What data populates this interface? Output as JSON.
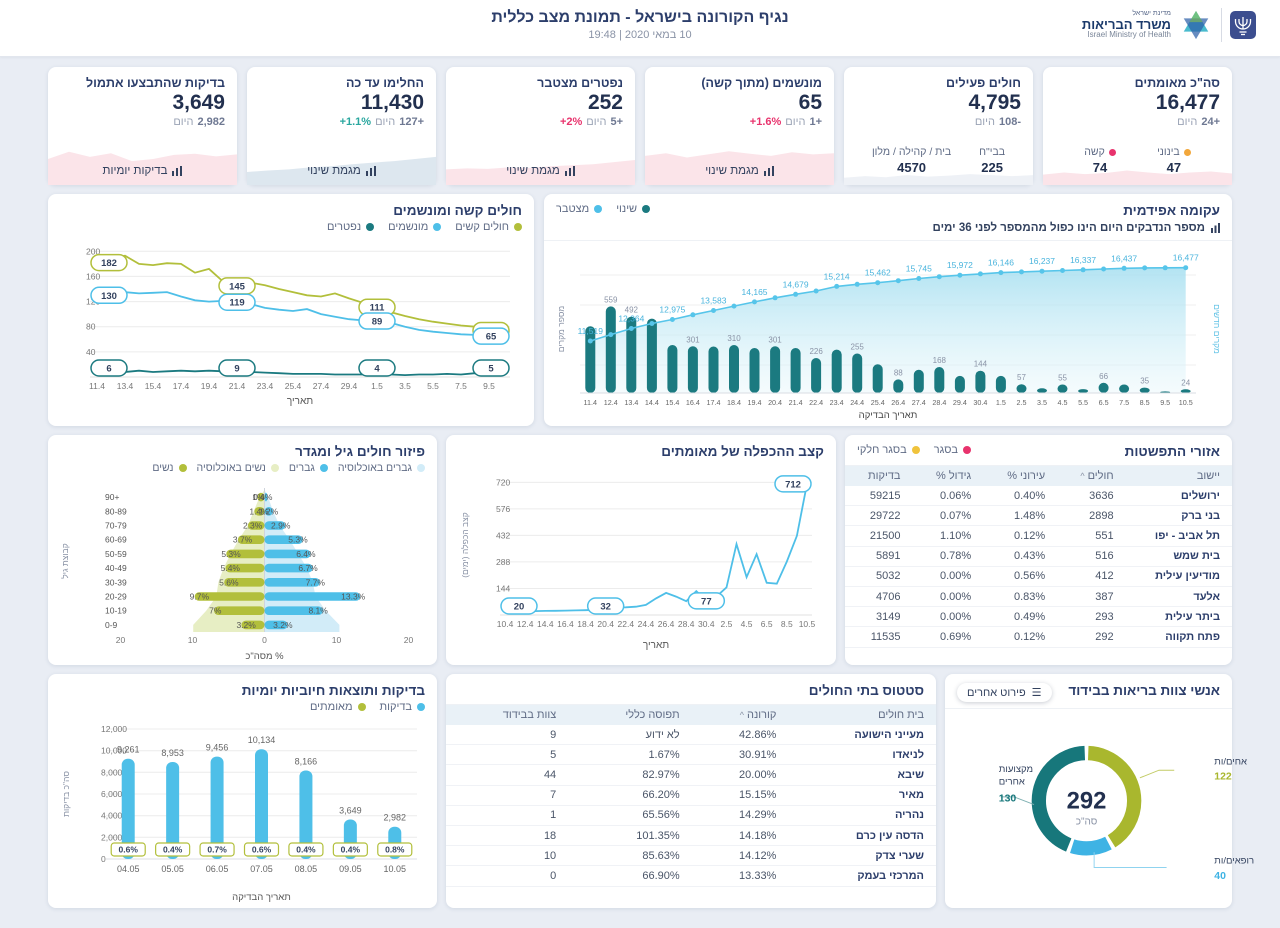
{
  "header": {
    "title": "נגיף הקורונה בישראל - תמונת מצב כללית",
    "datetime": "10 במאי 2020 | 19:48",
    "logo": {
      "state": "מדינת ישראל",
      "ministry": "משרד הבריאות",
      "ministry_en": "Israel Ministry of Health",
      "emblem_icon": "state-emblem-menorah-icon",
      "star_icon": "moh-star-icon"
    }
  },
  "kpis": [
    {
      "id": "confirmed-total",
      "title": "סה\"כ מאומתים",
      "value": "16,477",
      "delta_amount": "24+",
      "delta_word": "היום",
      "stats": [
        {
          "label": "בינוני",
          "value": "47",
          "dot": "#f2a73b"
        },
        {
          "label": "קשה",
          "value": "74",
          "dot": "#e8336d"
        }
      ],
      "spark": {
        "color": "#fbe4e9",
        "values": [
          2.0,
          2.4,
          2.1,
          2.3,
          2.8,
          2.4,
          2.1,
          2.4,
          2.6,
          2.2
        ]
      }
    },
    {
      "id": "active-patients",
      "title": "חולים פעילים",
      "value": "4,795",
      "delta_amount": "108-",
      "delta_word": "היום",
      "stats": [
        {
          "label": "בבי\"ח",
          "value": "225"
        },
        {
          "label": "בית / קהילה / מלון",
          "value": "4570"
        }
      ],
      "spark": {
        "color": "#eef1f6",
        "values": [
          1.4,
          1.7,
          1.5,
          1.9,
          1.6,
          1.8,
          2.1,
          1.9,
          1.7,
          1.9
        ]
      }
    },
    {
      "id": "ventilated",
      "title": "מונשמים (מתוך קשה)",
      "value": "65",
      "delta_amount": "1+",
      "delta_word": "היום",
      "delta_pct": "+1.6%",
      "delta_pct_color": "#e8336d",
      "link": {
        "label": "מגמת שינוי",
        "icon": "bar-chart-icon"
      },
      "spark": {
        "color": "#fbe4e9",
        "values": [
          5.6,
          6.1,
          5.3,
          5.9,
          6.5,
          6.0,
          5.6,
          6.3,
          5.9,
          6.1
        ]
      }
    },
    {
      "id": "deaths-cumulative",
      "title": "נפטרים מצטבר",
      "value": "252",
      "delta_amount": "5+",
      "delta_word": "היום",
      "delta_pct": "+2%",
      "delta_pct_color": "#e8336d",
      "link": {
        "label": "מגמת שינוי",
        "icon": "bar-chart-icon"
      },
      "spark": {
        "color": "#fbe4e9",
        "values": [
          3.0,
          3.2,
          3.1,
          3.4,
          3.3,
          3.6,
          3.8,
          4.0,
          4.4,
          4.8
        ]
      }
    },
    {
      "id": "recovered",
      "title": "החלימו עד כה",
      "value": "11,430",
      "delta_amount": "127+",
      "delta_word": "היום",
      "delta_pct": "+1.1%",
      "delta_pct_color": "#2aa79f",
      "link": {
        "label": "מגמת שינוי",
        "icon": "bar-chart-icon"
      },
      "spark": {
        "color": "#dde7ef",
        "values": [
          2.5,
          2.8,
          3.0,
          3.4,
          3.6,
          4.0,
          4.3,
          4.6,
          5.0,
          5.4
        ]
      }
    },
    {
      "id": "tests-yesterday",
      "title": "בדיקות שהתבצעו אתמול",
      "value": "3,649",
      "delta_amount": "2,982",
      "delta_word": "היום",
      "link": {
        "label": "בדיקות יומיות",
        "icon": "bar-chart-icon"
      },
      "spark": {
        "color": "#fbe4e9",
        "values": [
          5.0,
          6.4,
          5.4,
          6.1,
          4.6,
          5.0,
          5.8,
          6.0,
          5.5,
          5.9
        ]
      }
    }
  ],
  "chart_data": [
    {
      "id": "epidemic-curve",
      "type": "bar+line",
      "render": "combo",
      "title": "עקומה אפידמית",
      "note": "מספר הנדבקים היום הינו כפול מהמספר לפני 36 ימים",
      "legend": [
        {
          "label": "שינוי",
          "color": "#1b7a80"
        },
        {
          "label": "מצטבר",
          "color": "#4ebfe8"
        }
      ],
      "xlabel": "תאריך הבדיקה",
      "ylabel_left": "מספר מקרים",
      "ylabel_right": "מקרים חדשים",
      "categories": [
        "11.4",
        "12.4",
        "13.4",
        "14.4",
        "15.4",
        "16.4",
        "17.4",
        "18.4",
        "19.4",
        "20.4",
        "21.4",
        "22.4",
        "23.4",
        "24.4",
        "25.4",
        "26.4",
        "27.4",
        "28.4",
        "29.4",
        "30.4",
        "1.5",
        "2.5",
        "3.5",
        "4.5",
        "5.5",
        "6.5",
        "7.5",
        "8.5",
        "9.5",
        "10.5"
      ],
      "bars": {
        "name": "שינוי",
        "color": "#1b7a80",
        "values": [
          430,
          559,
          492,
          480,
          310,
          301,
          300,
          310,
          290,
          301,
          290,
          226,
          280,
          255,
          185,
          88,
          150,
          168,
          110,
          144,
          110,
          57,
          30,
          55,
          25,
          66,
          55,
          35,
          10,
          24
        ],
        "labels": [
          "",
          "559",
          "492",
          "",
          "",
          "301",
          "",
          "310",
          "",
          "301",
          "",
          "226",
          "",
          "255",
          "",
          "88",
          "",
          "168",
          "",
          "144",
          "",
          "57",
          "",
          "55",
          "",
          "66",
          "",
          "35",
          "",
          "24"
        ]
      },
      "line": {
        "name": "מצטבר",
        "color": "#56c5ea",
        "values": [
          11519,
          11950,
          12364,
          12700,
          12975,
          13290,
          13583,
          13880,
          14165,
          14440,
          14679,
          14900,
          15214,
          15350,
          15462,
          15600,
          15745,
          15870,
          15972,
          16060,
          16146,
          16190,
          16237,
          16290,
          16337,
          16390,
          16437,
          16460,
          16470,
          16477
        ],
        "labels": [
          "11,519",
          "",
          "12,364",
          "",
          "12,975",
          "",
          "13,583",
          "",
          "14,165",
          "",
          "14,679",
          "",
          "15,214",
          "",
          "15,462",
          "",
          "15,745",
          "",
          "15,972",
          "",
          "16,146",
          "",
          "16,237",
          "",
          "16,337",
          "",
          "16,437",
          "",
          "",
          "16,477"
        ]
      }
    },
    {
      "id": "severe-ventilated",
      "type": "line",
      "render": "lines",
      "title": "חולים קשה ומונשמים",
      "legend": [
        {
          "label": "חולים קשים",
          "color": "#b2bf3b"
        },
        {
          "label": "מונשמים",
          "color": "#4ebfe8"
        },
        {
          "label": "נפטרים",
          "color": "#1b7a80"
        }
      ],
      "xlabel": "תאריך",
      "ymax": 210,
      "yticks": [
        200,
        160,
        120,
        80,
        40
      ],
      "categories": [
        "11.4",
        "12.4",
        "13.4",
        "14.4",
        "15.4",
        "16.4",
        "17.4",
        "18.4",
        "19.4",
        "20.4",
        "21.4",
        "22.4",
        "23.4",
        "24.4",
        "25.4",
        "26.4",
        "27.4",
        "28.4",
        "29.4",
        "30.4",
        "1.5",
        "2.5",
        "3.5",
        "4.5",
        "5.5",
        "6.5",
        "7.5",
        "8.5",
        "9.5",
        "10.5"
      ],
      "series": [
        {
          "name": "חולים קשים",
          "color": "#b2bf3b",
          "values": [
            182,
            188,
            193,
            180,
            178,
            181,
            180,
            166,
            172,
            152,
            145,
            150,
            146,
            140,
            135,
            130,
            128,
            133,
            125,
            118,
            111,
            103,
            97,
            92,
            88,
            85,
            82,
            80,
            78,
            74
          ],
          "callouts": {
            "0": "182",
            "10": "145",
            "20": "111",
            "29": "74"
          }
        },
        {
          "name": "מונשמים",
          "color": "#4ebfe8",
          "values": [
            130,
            132,
            135,
            133,
            134,
            135,
            128,
            122,
            120,
            121,
            119,
            116,
            110,
            107,
            105,
            108,
            100,
            96,
            92,
            90,
            89,
            86,
            80,
            75,
            72,
            70,
            68,
            67,
            66,
            65
          ],
          "callouts": {
            "0": "130",
            "10": "119",
            "20": "89",
            "29": "65"
          }
        },
        {
          "name": "נפטרים",
          "color": "#1b7a80",
          "values": [
            6,
            7,
            8,
            10,
            8,
            9,
            10,
            9,
            10,
            9,
            9,
            8,
            7,
            6,
            5,
            5,
            5,
            4,
            4,
            4,
            4,
            4,
            3,
            4,
            4,
            5,
            4,
            6,
            5,
            5
          ],
          "callouts": {
            "0": "6",
            "10": "9",
            "20": "4",
            "29": "5"
          }
        }
      ]
    },
    {
      "id": "age-gender",
      "type": "pyramid",
      "render": "pyramid",
      "title": "פיזור חולים גיל ומגדר",
      "legend": [
        {
          "label": "גברים באוכלוסיה",
          "color": "#d2ecf8"
        },
        {
          "label": "גברים",
          "color": "#4ebfe8"
        },
        {
          "label": "נשים באוכלוסיה",
          "color": "#e7eec4"
        },
        {
          "label": "נשים",
          "color": "#b2bf3b"
        }
      ],
      "xlabel": "% מסה\"כ",
      "ylabel": "קבוצת גיל",
      "xticks": [
        20,
        10,
        0,
        10,
        20
      ],
      "groups": [
        "+90",
        "80-89",
        "70-79",
        "60-69",
        "50-59",
        "40-49",
        "30-39",
        "20-29",
        "10-19",
        "0-9"
      ],
      "women": [
        1,
        1.4,
        2.3,
        3.7,
        5.3,
        5.4,
        5.6,
        9.7,
        7,
        3.2
      ],
      "women_labels": [
        "1%",
        "1.4%",
        "2.3%",
        "3.7%",
        "5.3%",
        "5.4%",
        "5.6%",
        "9.7%",
        "7%",
        "3.2%"
      ],
      "men": [
        0.4,
        1.2,
        2.9,
        5.3,
        6.4,
        6.7,
        7.7,
        13.3,
        8.1,
        3.2
      ],
      "men_labels": [
        "0.4%",
        "1.2%",
        "2.9%",
        "5.3%",
        "6.4%",
        "6.7%",
        "7.7%",
        "13.3%",
        "8.1%",
        "3.2%"
      ],
      "women_pop": [
        0.7,
        1.5,
        2.3,
        3.6,
        4.7,
        5.7,
        6.4,
        6.7,
        8.1,
        9.9
      ],
      "men_pop": [
        0.5,
        1.2,
        2.1,
        3.5,
        4.7,
        5.9,
        6.7,
        7.1,
        8.5,
        10.4
      ],
      "colors": {
        "women": "#b2bf3b",
        "men": "#4ebfe8"
      },
      "pop_colors": {
        "women": "#e7eec4",
        "men": "#d2ecf8"
      }
    },
    {
      "id": "doubling-rate",
      "type": "line",
      "render": "lines",
      "title": "קצב ההכפלה של מאומתים",
      "xlabel": "תאריך",
      "ylabel": "קצב הכפלה (ימים)",
      "ymax": 760,
      "yticks": [
        720,
        576,
        432,
        288,
        144
      ],
      "categories": [
        "10.4",
        "11.4",
        "12.4",
        "13.4",
        "14.4",
        "15.4",
        "16.4",
        "17.4",
        "18.4",
        "19.4",
        "20.4",
        "21.4",
        "22.4",
        "23.4",
        "24.4",
        "25.4",
        "26.4",
        "27.4",
        "28.4",
        "29.4",
        "30.4",
        "1.5",
        "2.5",
        "3.5",
        "4.5",
        "5.5",
        "6.5",
        "7.5",
        "8.5",
        "9.5",
        "10.5"
      ],
      "series": [
        {
          "name": "קצב הכפלה",
          "color": "#4ebfe8",
          "values": [
            20,
            19,
            20,
            21,
            22,
            23,
            24,
            25,
            26,
            28,
            32,
            40,
            42,
            45,
            55,
            90,
            120,
            100,
            75,
            130,
            77,
            100,
            150,
            385,
            205,
            330,
            175,
            170,
            290,
            430,
            712
          ],
          "callouts": {
            "0": "20",
            "10": "32",
            "20": "77",
            "30": "712"
          }
        }
      ]
    },
    {
      "id": "daily-tests",
      "type": "bar",
      "render": "bars",
      "title": "בדיקות ותוצאות חיוביות יומיות",
      "legend": [
        {
          "label": "בדיקות",
          "color": "#4ebfe8"
        },
        {
          "label": "מאומתים",
          "color": "#b2bf3b"
        }
      ],
      "xlabel": "תאריך הבדיקה",
      "ylabel": "סה\"כ בדיקות",
      "yticks": [
        12000,
        10000,
        8000,
        6000,
        4000,
        2000,
        0
      ],
      "ytick_labels": [
        "12,000",
        "10,000",
        "8,000",
        "6,000",
        "4,000",
        "2,000",
        "0"
      ],
      "categories": [
        "04.05",
        "05.05",
        "06.05",
        "07.05",
        "08.05",
        "09.05",
        "10.05"
      ],
      "values": [
        9261,
        8953,
        9456,
        10134,
        8166,
        3649,
        2982
      ],
      "labels": [
        "9,261",
        "8,953",
        "9,456",
        "10,134",
        "8,166",
        "3,649",
        "2,982"
      ],
      "positive_pct": [
        "0.6%",
        "0.4%",
        "0.7%",
        "0.6%",
        "0.4%",
        "0.4%",
        "0.8%"
      ],
      "bar_color": "#4ebfe8",
      "pct_border": "#b2bf3b"
    },
    {
      "id": "staff-isolation",
      "type": "pie",
      "render": "donut",
      "title": "אנשי צוות בריאות בבידוד",
      "button": "פירוט אחרים",
      "total": "292",
      "total_label": "סה\"כ",
      "segments": [
        {
          "label": "אחים/ות",
          "value": 122,
          "color": "#a9b72e"
        },
        {
          "label": "רופאים/ות",
          "value": 40,
          "color": "#3eb3e4"
        },
        {
          "label": "מקצועות אחרים",
          "value": 130,
          "color": "#17777b"
        }
      ]
    }
  ],
  "tables": {
    "spread": {
      "title": "אזורי התפשטות",
      "legend": [
        {
          "label": "בסגר",
          "color": "#e8336d"
        },
        {
          "label": "בסגר חלקי",
          "color": "#f0c33c"
        }
      ],
      "columns": [
        {
          "label": "יישוב"
        },
        {
          "label": "חולים",
          "sort": "^"
        },
        {
          "label": "עירוני %"
        },
        {
          "label": "גידול %"
        },
        {
          "label": "בדיקות"
        }
      ],
      "rows": [
        [
          "ירושלים",
          "3636",
          "0.40%",
          "0.06%",
          "59215"
        ],
        [
          "בני ברק",
          "2898",
          "1.48%",
          "0.07%",
          "29722"
        ],
        [
          "תל אביב - יפו",
          "551",
          "0.12%",
          "1.10%",
          "21500"
        ],
        [
          "בית שמש",
          "516",
          "0.43%",
          "0.78%",
          "5891"
        ],
        [
          "מודיעין עילית",
          "412",
          "0.56%",
          "0.00%",
          "5032"
        ],
        [
          "אלעד",
          "387",
          "0.83%",
          "0.00%",
          "4706"
        ],
        [
          "ביתר עילית",
          "293",
          "0.49%",
          "0.00%",
          "3149"
        ],
        [
          "פתח תקווה",
          "292",
          "0.12%",
          "0.69%",
          "11535"
        ]
      ]
    },
    "hospitals": {
      "title": "סטטוס בתי החולים",
      "columns": [
        {
          "label": "בית חולים"
        },
        {
          "label": "קורונה",
          "sort": "^"
        },
        {
          "label": "תפוסה כללי"
        },
        {
          "label": "צוות בבידוד"
        }
      ],
      "rows": [
        [
          "מעייני הישועה",
          "42.86%",
          "לא ידוע",
          "9"
        ],
        [
          "לניאדו",
          "30.91%",
          "1.67%",
          "5"
        ],
        [
          "שיבא",
          "20.00%",
          "82.97%",
          "44"
        ],
        [
          "מאיר",
          "15.15%",
          "66.20%",
          "7"
        ],
        [
          "נהריה",
          "14.29%",
          "65.56%",
          "1"
        ],
        [
          "הדסה עין כרם",
          "14.18%",
          "101.35%",
          "18"
        ],
        [
          "שערי צדק",
          "14.12%",
          "85.63%",
          "10"
        ],
        [
          "המרכזי בעמק",
          "13.33%",
          "66.90%",
          "0"
        ]
      ]
    }
  }
}
